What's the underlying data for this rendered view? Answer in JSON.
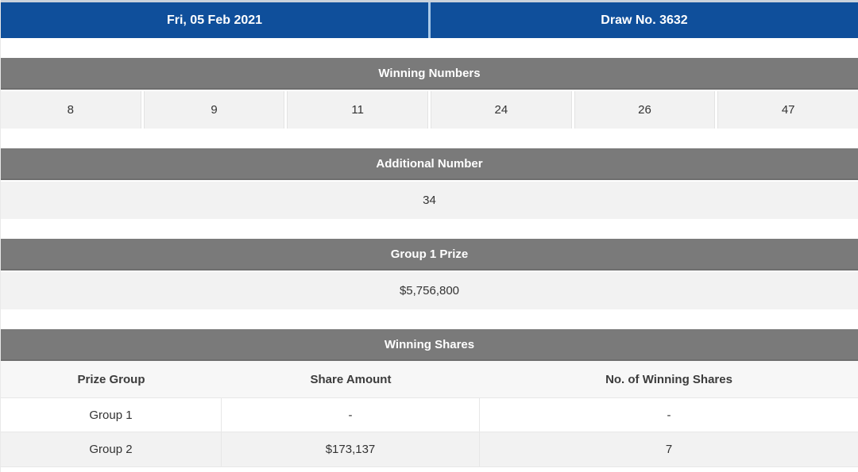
{
  "draw_header": {
    "date": "Fri, 05 Feb 2021",
    "draw_no": "Draw No. 3632"
  },
  "winning_numbers": {
    "title": "Winning Numbers",
    "numbers": [
      "8",
      "9",
      "11",
      "24",
      "26",
      "47"
    ]
  },
  "additional_number": {
    "title": "Additional Number",
    "value": "34"
  },
  "group1_prize": {
    "title": "Group 1 Prize",
    "value": "$5,756,800"
  },
  "winning_shares": {
    "title": "Winning Shares",
    "columns": [
      "Prize Group",
      "Share Amount",
      "No. of Winning Shares"
    ],
    "rows": [
      [
        "Group 1",
        "-",
        "-"
      ],
      [
        "Group 2",
        "$173,137",
        "7"
      ]
    ]
  },
  "colors": {
    "header_blue": "#0f4f9b",
    "header_divider_blue": "#a9c9e8",
    "section_gray": "#7a7a7a",
    "row_light_gray": "#f2f2f2",
    "table_border": "#e7e7e7"
  }
}
